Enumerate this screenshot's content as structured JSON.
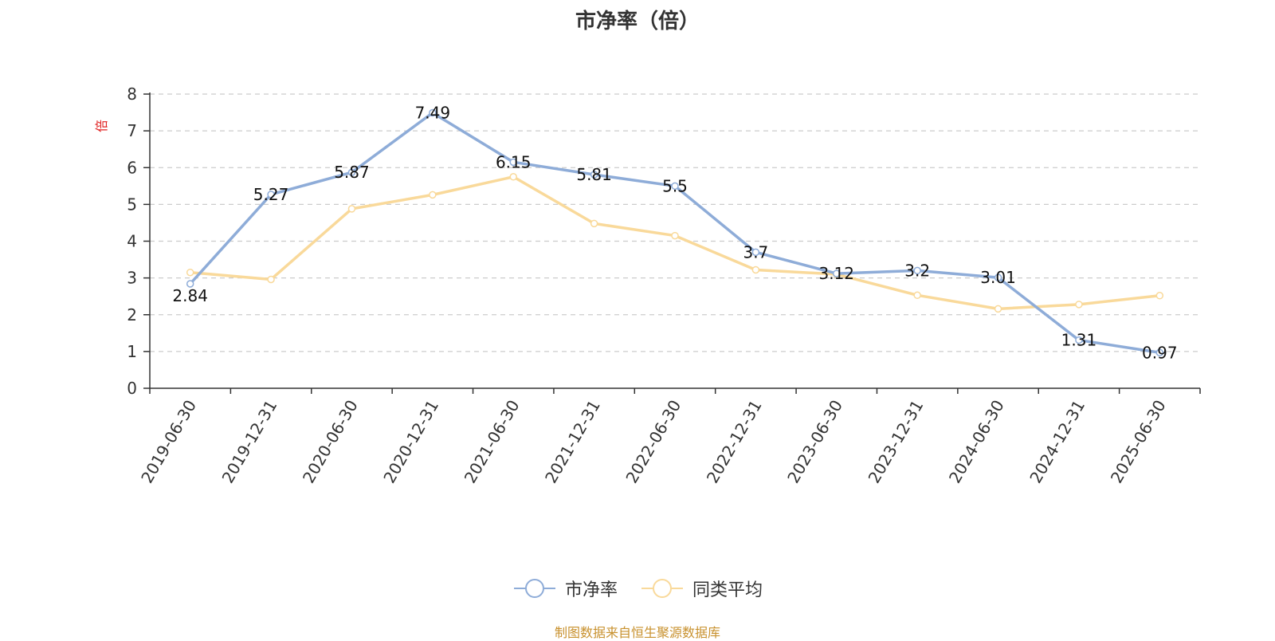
{
  "chart_data": {
    "type": "line",
    "title": "市净率（倍）",
    "y_unit": "倍",
    "ylim": [
      0,
      8
    ],
    "y_ticks": [
      0,
      1,
      2,
      3,
      4,
      5,
      6,
      7,
      8
    ],
    "grid": "horizontal dashed",
    "legend_position": "bottom-center",
    "categories": [
      "2019-06-30",
      "2019-12-31",
      "2020-06-30",
      "2020-12-31",
      "2021-06-30",
      "2021-12-31",
      "2022-06-30",
      "2022-12-31",
      "2023-06-30",
      "2023-12-31",
      "2024-06-30",
      "2024-12-31",
      "2025-06-30"
    ],
    "series": [
      {
        "name": "市净率",
        "color": "#8eacd8",
        "values": [
          2.84,
          5.27,
          5.87,
          7.49,
          6.15,
          5.81,
          5.5,
          3.7,
          3.12,
          3.2,
          3.01,
          1.31,
          0.97
        ],
        "labels": [
          "2.84",
          "5.27",
          "5.87",
          "7.49",
          "6.15",
          "5.81",
          "5.5",
          "3.7",
          "3.12",
          "3.2",
          "3.01",
          "1.31",
          "0.97"
        ]
      },
      {
        "name": "同类平均",
        "color": "#f9d99a",
        "values": [
          3.15,
          2.96,
          4.88,
          5.26,
          5.75,
          4.48,
          4.15,
          3.22,
          3.1,
          2.53,
          2.16,
          2.28,
          2.52
        ]
      }
    ]
  },
  "source_text": "制图数据来自恒生聚源数据库",
  "colors": {
    "title": "#333333",
    "axis": "#333333",
    "grid": "#cccccc",
    "unit": "#e02020",
    "source": "#c8912e"
  }
}
